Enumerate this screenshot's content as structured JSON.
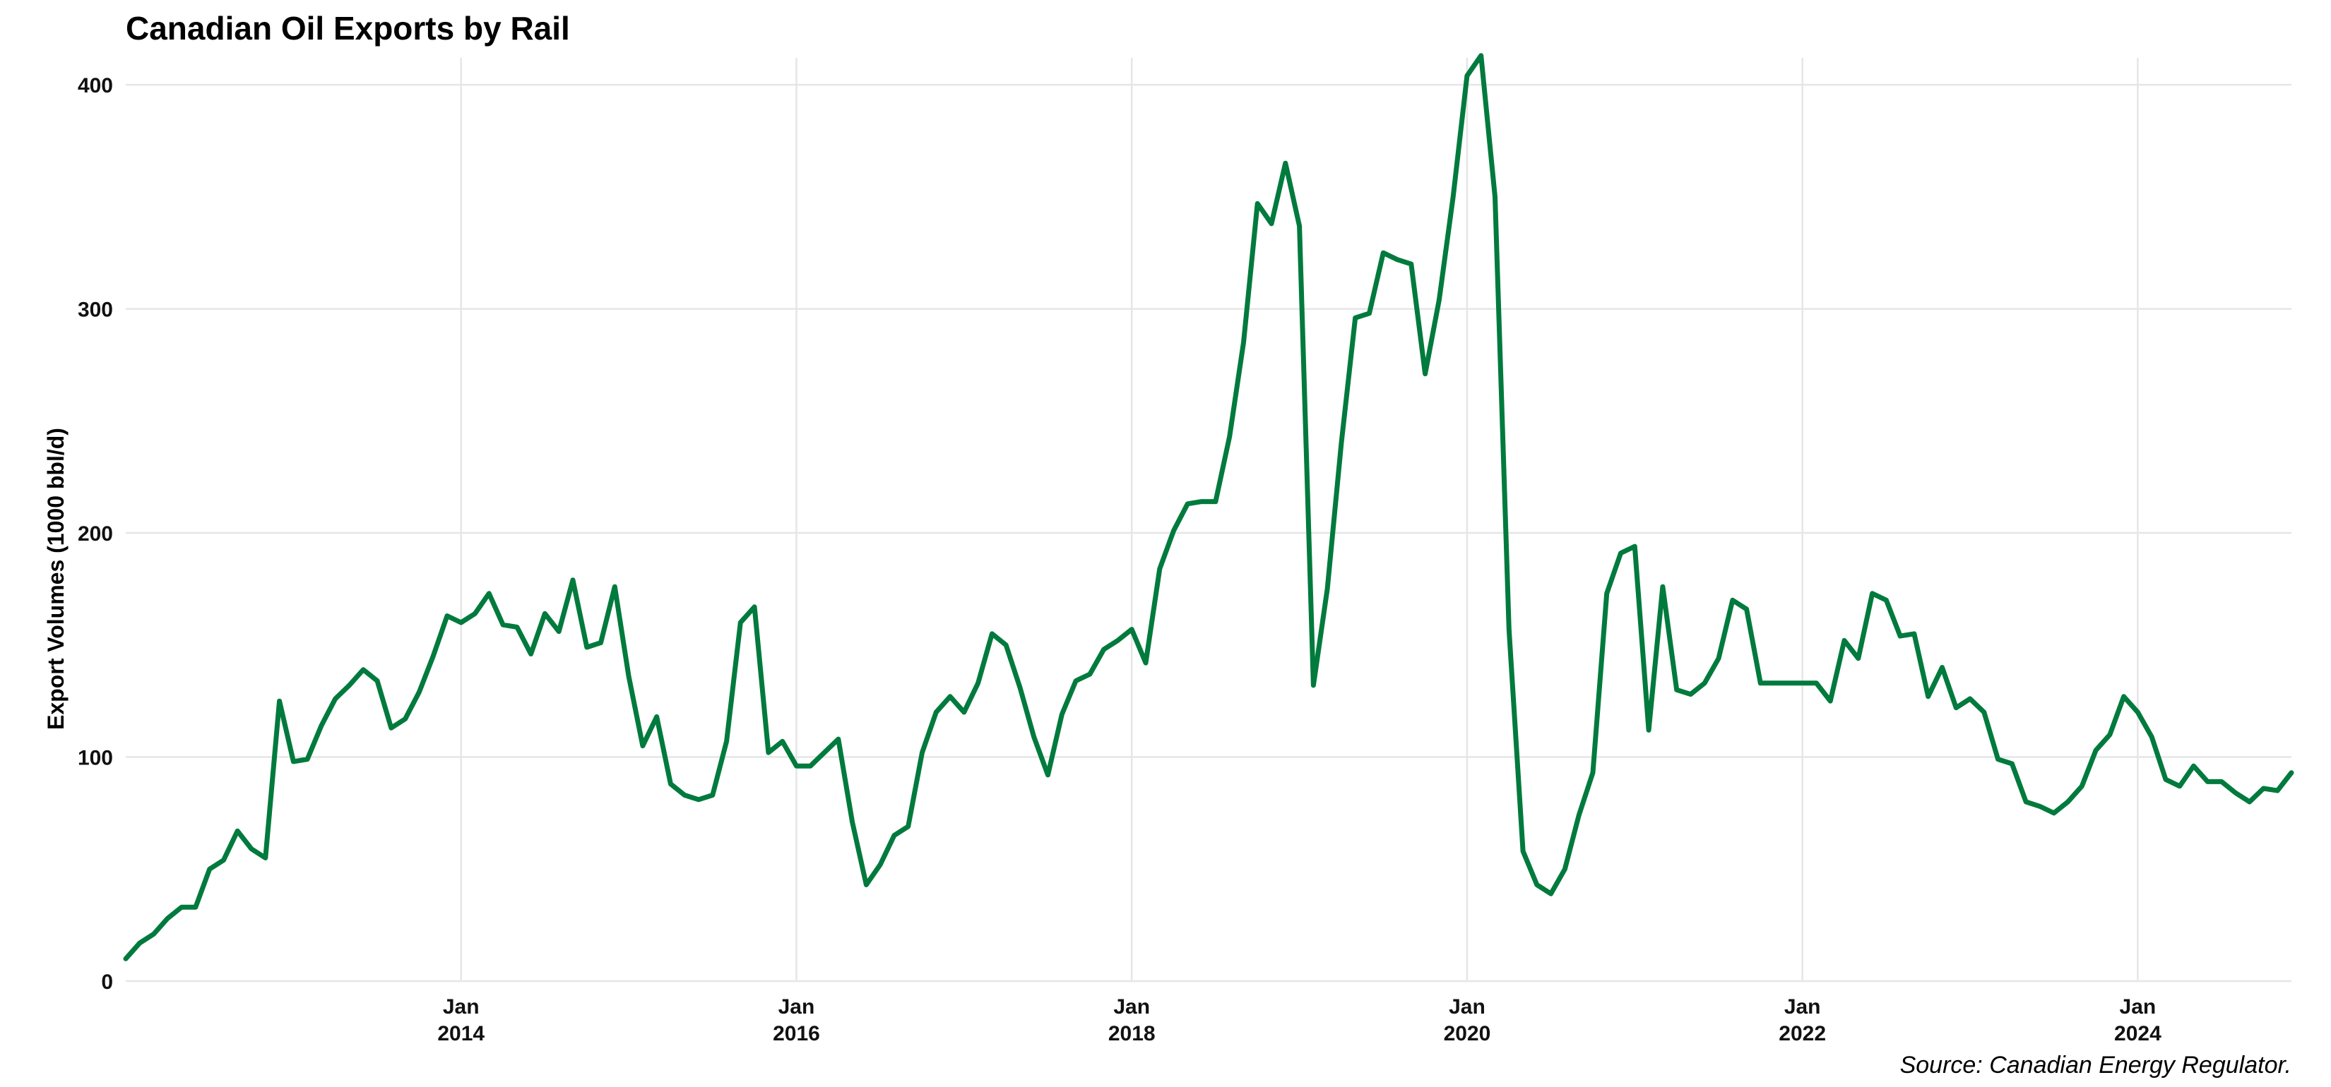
{
  "chart_data": {
    "type": "line",
    "title": "Canadian Oil Exports by Rail",
    "xlabel": "",
    "ylabel": "Export Volumes (1000 bbl/d)",
    "caption": "Source: Canadian Energy Regulator.",
    "ylim": [
      0,
      412
    ],
    "xlim": [
      "2012-01",
      "2024-12"
    ],
    "yticks": [
      0,
      100,
      200,
      300,
      400
    ],
    "xticks": [
      {
        "date": "2014-01",
        "label_top": "Jan",
        "label_bottom": "2014"
      },
      {
        "date": "2016-01",
        "label_top": "Jan",
        "label_bottom": "2016"
      },
      {
        "date": "2018-01",
        "label_top": "Jan",
        "label_bottom": "2018"
      },
      {
        "date": "2020-01",
        "label_top": "Jan",
        "label_bottom": "2020"
      },
      {
        "date": "2022-01",
        "label_top": "Jan",
        "label_bottom": "2022"
      },
      {
        "date": "2024-01",
        "label_top": "Jan",
        "label_bottom": "2024"
      }
    ],
    "grid": true,
    "line_color": "#007a3d",
    "series": [
      {
        "x": [
          "2012-01",
          "2012-02",
          "2012-03",
          "2012-04",
          "2012-05",
          "2012-06",
          "2012-07",
          "2012-08",
          "2012-09",
          "2012-10",
          "2012-11",
          "2012-12",
          "2013-01",
          "2013-02",
          "2013-03",
          "2013-04",
          "2013-05",
          "2013-06",
          "2013-07",
          "2013-08",
          "2013-09",
          "2013-10",
          "2013-11",
          "2013-12",
          "2014-01",
          "2014-02",
          "2014-03",
          "2014-04",
          "2014-05",
          "2014-06",
          "2014-07",
          "2014-08",
          "2014-09",
          "2014-10",
          "2014-11",
          "2014-12",
          "2015-01",
          "2015-02",
          "2015-03",
          "2015-04",
          "2015-05",
          "2015-06",
          "2015-07",
          "2015-08",
          "2015-09",
          "2015-10",
          "2015-11",
          "2015-12",
          "2016-01",
          "2016-02",
          "2016-03",
          "2016-04",
          "2016-05",
          "2016-06",
          "2016-07",
          "2016-08",
          "2016-09",
          "2016-10",
          "2016-11",
          "2016-12",
          "2017-01",
          "2017-02",
          "2017-03",
          "2017-04",
          "2017-05",
          "2017-06",
          "2017-07",
          "2017-08",
          "2017-09",
          "2017-10",
          "2017-11",
          "2017-12",
          "2018-01",
          "2018-02",
          "2018-03",
          "2018-04",
          "2018-05",
          "2018-06",
          "2018-07",
          "2018-08",
          "2018-09",
          "2018-10",
          "2018-11",
          "2018-12",
          "2019-01",
          "2019-02",
          "2019-03",
          "2019-04",
          "2019-05",
          "2019-06",
          "2019-07",
          "2019-08",
          "2019-09",
          "2019-10",
          "2019-11",
          "2019-12",
          "2020-01",
          "2020-02",
          "2020-03",
          "2020-04",
          "2020-05",
          "2020-06",
          "2020-07",
          "2020-08",
          "2020-09",
          "2020-10",
          "2020-11",
          "2020-12",
          "2021-01",
          "2021-02",
          "2021-03",
          "2021-04",
          "2021-05",
          "2021-06",
          "2021-07",
          "2021-08",
          "2021-09",
          "2021-10",
          "2021-11",
          "2021-12",
          "2022-01",
          "2022-02",
          "2022-03",
          "2022-04",
          "2022-05",
          "2022-06",
          "2022-07",
          "2022-08",
          "2022-09",
          "2022-10",
          "2022-11",
          "2022-12",
          "2023-01",
          "2023-02",
          "2023-03",
          "2023-04",
          "2023-05",
          "2023-06",
          "2023-07",
          "2023-08",
          "2023-09",
          "2023-10",
          "2023-11",
          "2023-12",
          "2024-01",
          "2024-02",
          "2024-03",
          "2024-04",
          "2024-05",
          "2024-06",
          "2024-07",
          "2024-08",
          "2024-09",
          "2024-10",
          "2024-11",
          "2024-12"
        ],
        "values": [
          10,
          17,
          21,
          28,
          33,
          33,
          50,
          54,
          67,
          59,
          55,
          125,
          98,
          99,
          114,
          126,
          132,
          139,
          134,
          113,
          117,
          129,
          145,
          163,
          160,
          164,
          173,
          159,
          158,
          146,
          164,
          156,
          179,
          149,
          151,
          176,
          136,
          105,
          118,
          88,
          83,
          81,
          83,
          107,
          160,
          167,
          102,
          107,
          96,
          96,
          102,
          108,
          71,
          43,
          52,
          65,
          69,
          102,
          120,
          127,
          120,
          133,
          155,
          150,
          131,
          109,
          92,
          119,
          134,
          137,
          148,
          152,
          157,
          142,
          184,
          201,
          213,
          214,
          214,
          243,
          285,
          347,
          338,
          365,
          337,
          132,
          175,
          240,
          296,
          298,
          325,
          322,
          320,
          271,
          304,
          350,
          404,
          413,
          350,
          157,
          58,
          43,
          39,
          50,
          74,
          93,
          173,
          191,
          194,
          112,
          176,
          130,
          128,
          133,
          144,
          170,
          166,
          133,
          133,
          133,
          133,
          133,
          125,
          152,
          144,
          173,
          170,
          154,
          155,
          127,
          140,
          122,
          126,
          120,
          99,
          97,
          80,
          78,
          75,
          80,
          87,
          103,
          110,
          127,
          120,
          109,
          90,
          87,
          96,
          89,
          89,
          84,
          80,
          86,
          85,
          93
        ]
      }
    ]
  }
}
